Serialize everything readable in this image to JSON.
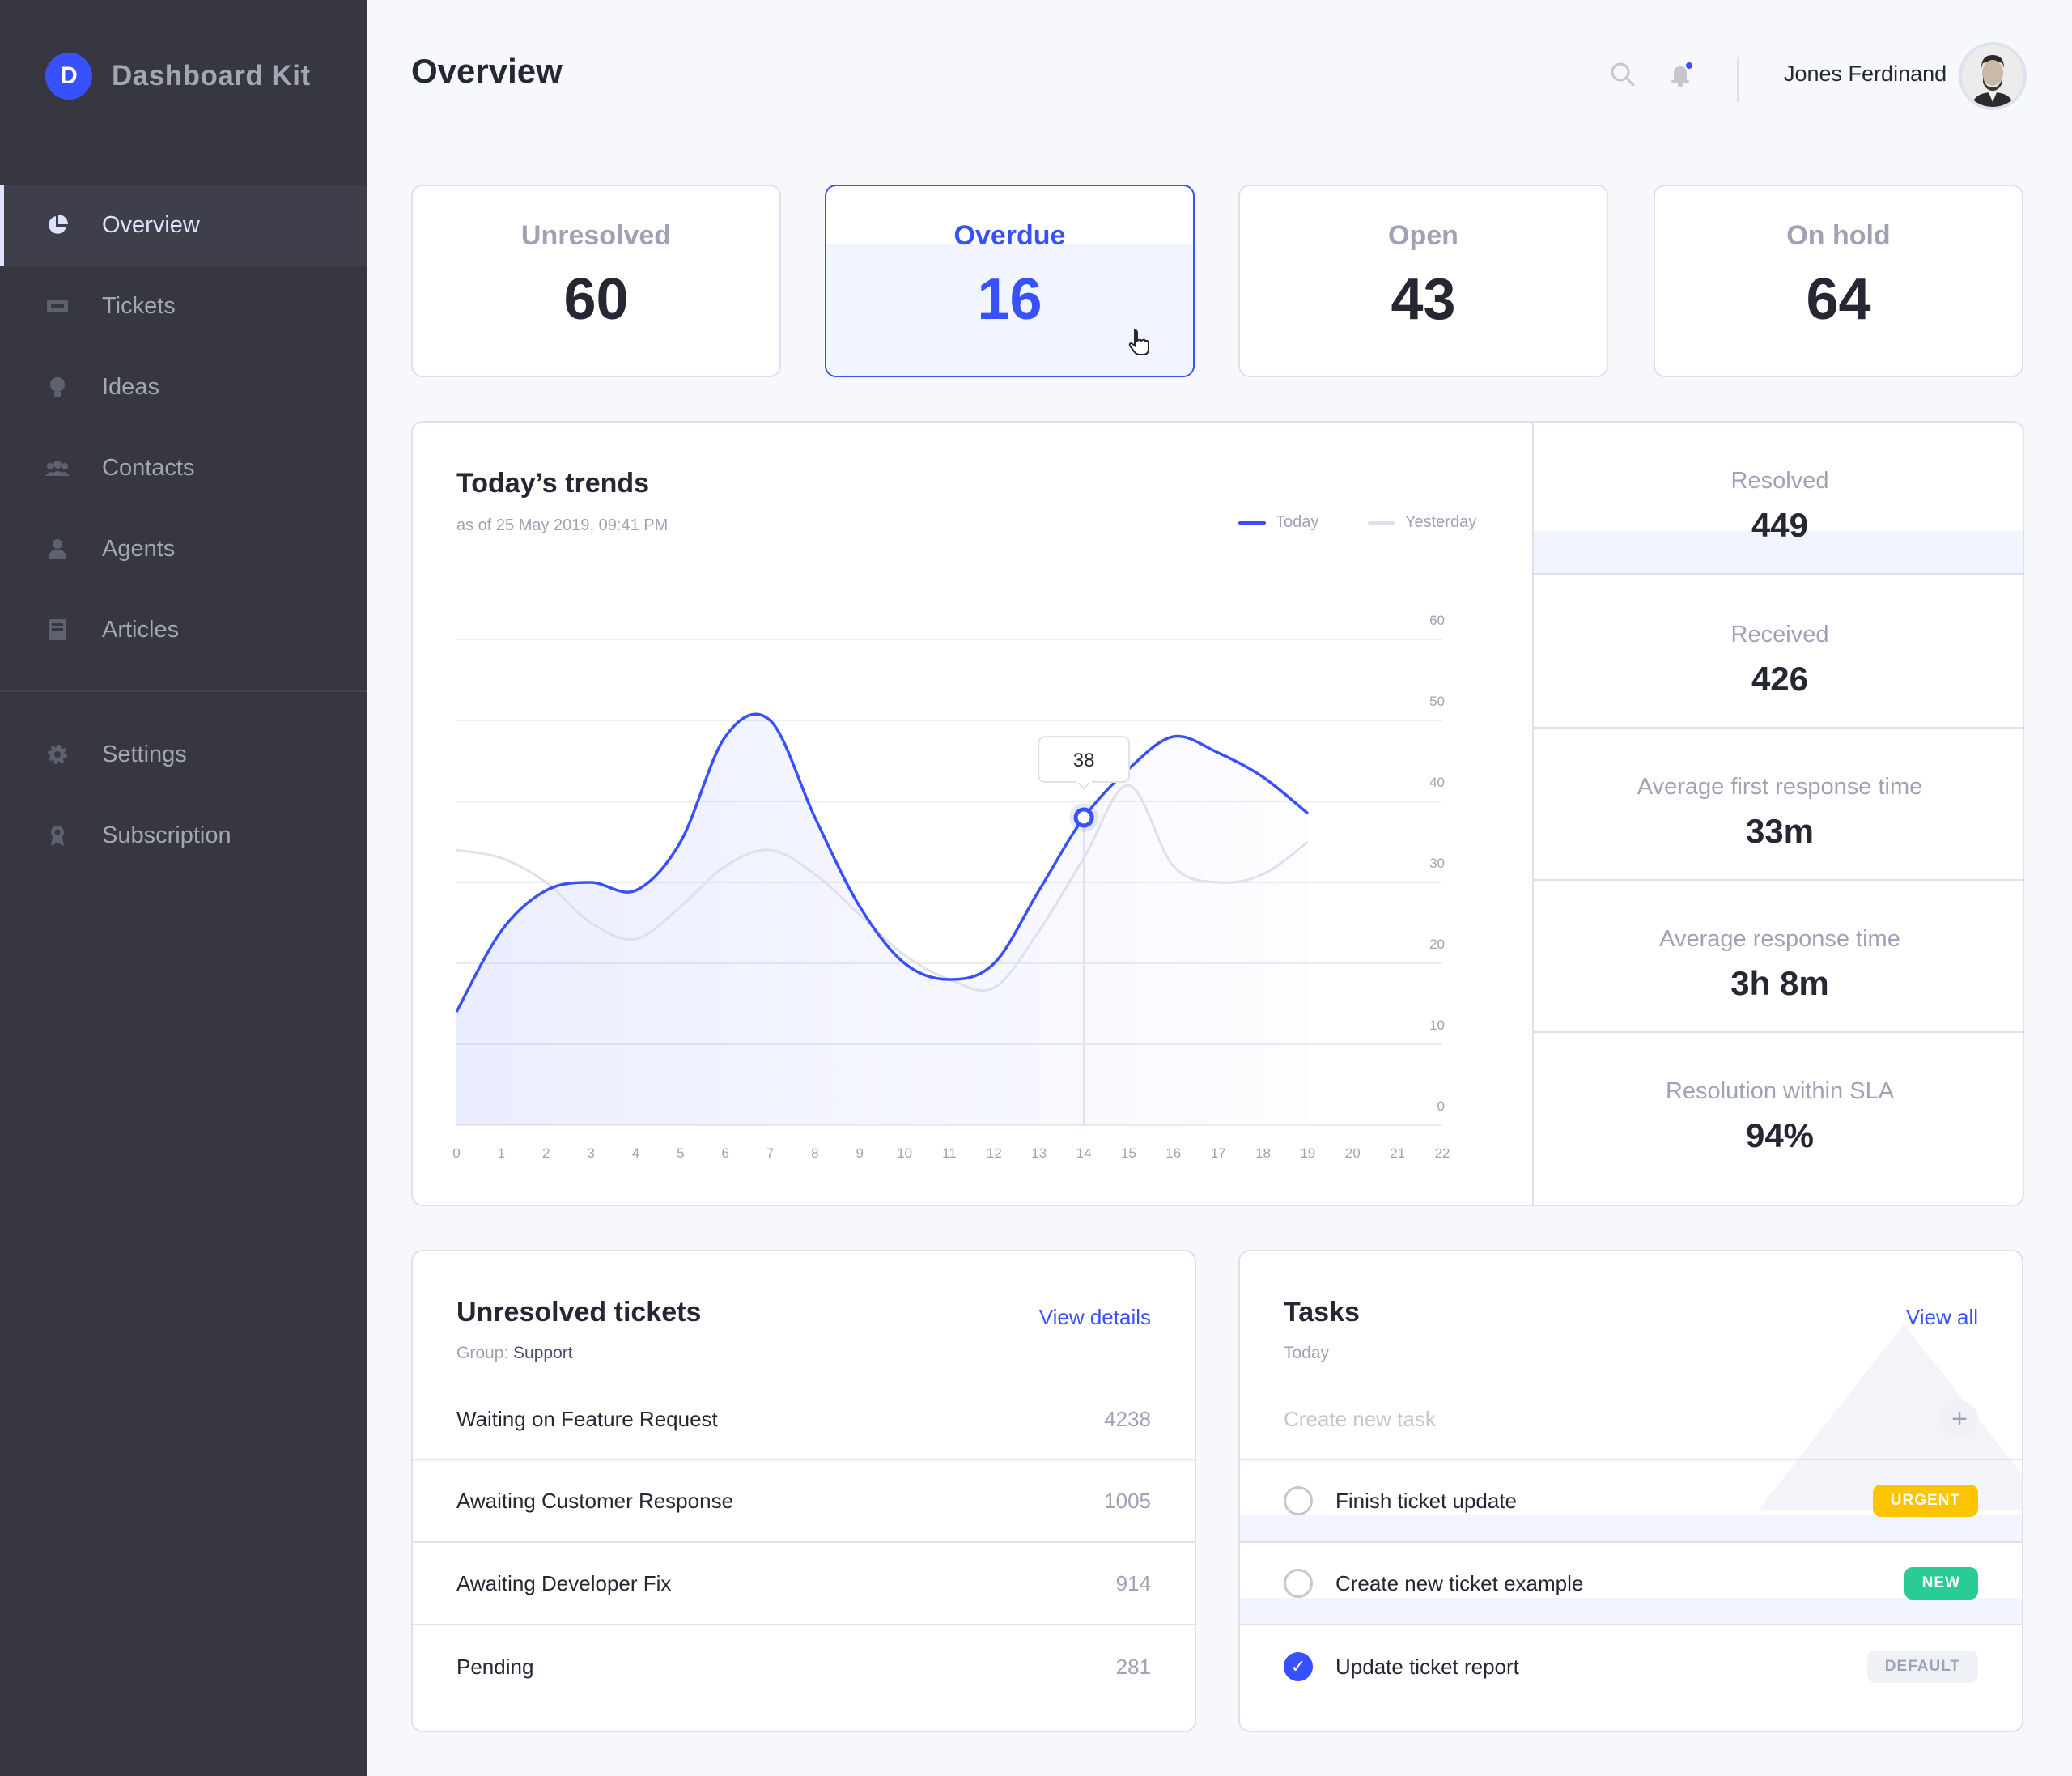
{
  "brand": {
    "logo_letter": "D",
    "name": "Dashboard Kit"
  },
  "sidebar": {
    "items": [
      {
        "label": "Overview",
        "icon": "pie-chart-icon",
        "active": true
      },
      {
        "label": "Tickets",
        "icon": "ticket-icon"
      },
      {
        "label": "Ideas",
        "icon": "lightbulb-icon"
      },
      {
        "label": "Contacts",
        "icon": "users-icon"
      },
      {
        "label": "Agents",
        "icon": "agent-icon"
      },
      {
        "label": "Articles",
        "icon": "book-icon"
      }
    ],
    "secondary": [
      {
        "label": "Settings",
        "icon": "gear-icon"
      },
      {
        "label": "Subscription",
        "icon": "award-icon"
      }
    ]
  },
  "header": {
    "title": "Overview",
    "user_name": "Jones Ferdinand"
  },
  "colors": {
    "accent": "#3751ff",
    "sidebar": "#363740",
    "urgent": "#fec400",
    "new": "#29cc97"
  },
  "stats": [
    {
      "label": "Unresolved",
      "value": "60"
    },
    {
      "label": "Overdue",
      "value": "16"
    },
    {
      "label": "Open",
      "value": "43"
    },
    {
      "label": "On hold",
      "value": "64"
    }
  ],
  "trends": {
    "title": "Today’s trends",
    "subtitle": "as of 25 May 2019, 09:41 PM",
    "tooltip_value": "38"
  },
  "chart_data": {
    "type": "line",
    "x": [
      0,
      1,
      2,
      3,
      4,
      5,
      6,
      7,
      8,
      9,
      10,
      11,
      12,
      13,
      14,
      15,
      16,
      17,
      18,
      19
    ],
    "x_ticks": [
      "0",
      "1",
      "2",
      "3",
      "4",
      "5",
      "6",
      "7",
      "8",
      "9",
      "10",
      "11",
      "12",
      "13",
      "14",
      "15",
      "16",
      "17",
      "18",
      "19",
      "20",
      "21",
      "22"
    ],
    "y_ticks": [
      "0",
      "10",
      "20",
      "30",
      "40",
      "50",
      "60"
    ],
    "ylim": [
      0,
      60
    ],
    "xlim": [
      0,
      22
    ],
    "series": [
      {
        "name": "Today",
        "color": "#3751ff",
        "values": [
          14,
          24,
          29,
          30,
          29,
          35,
          48,
          50,
          38,
          27,
          20,
          18,
          20,
          29,
          38,
          44,
          48,
          46,
          43,
          38.5
        ]
      },
      {
        "name": "Yesterday",
        "color": "#dfe0eb",
        "values": [
          34,
          33,
          30,
          25,
          23,
          27,
          32,
          34,
          31,
          26,
          21,
          18,
          17,
          24,
          33,
          42,
          32,
          30,
          31,
          35
        ]
      }
    ],
    "highlight": {
      "x": 14,
      "value": 38
    },
    "legend": "top-right",
    "grid": true
  },
  "side_stats": [
    {
      "label": "Resolved",
      "value": "449"
    },
    {
      "label": "Received",
      "value": "426"
    },
    {
      "label": "Average first response time",
      "value": "33m"
    },
    {
      "label": "Average response time",
      "value": "3h 8m"
    },
    {
      "label": "Resolution within SLA",
      "value": "94%"
    }
  ],
  "unresolved": {
    "title": "Unresolved tickets",
    "link": "View details",
    "group_label": "Group:",
    "group_value": "Support",
    "rows": [
      {
        "label": "Waiting on Feature Request",
        "count": "4238"
      },
      {
        "label": "Awaiting Customer Response",
        "count": "1005"
      },
      {
        "label": "Awaiting Developer Fix",
        "count": "914"
      },
      {
        "label": "Pending",
        "count": "281"
      }
    ]
  },
  "tasks": {
    "title": "Tasks",
    "link": "View all",
    "subtitle": "Today",
    "placeholder": "Create new task",
    "items": [
      {
        "label": "Finish ticket update",
        "badge": "URGENT",
        "done": false
      },
      {
        "label": "Create new ticket example",
        "badge": "NEW",
        "done": false
      },
      {
        "label": "Update ticket report",
        "badge": "DEFAULT",
        "done": true
      }
    ]
  }
}
